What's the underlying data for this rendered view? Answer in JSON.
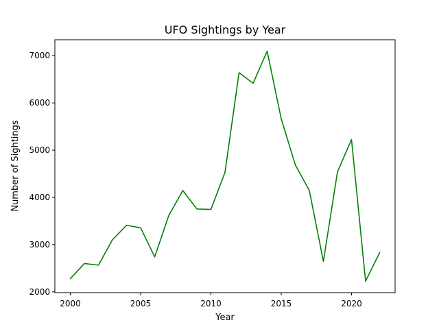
{
  "chart_data": {
    "type": "line",
    "title": "UFO Sightings by Year",
    "xlabel": "Year",
    "ylabel": "Number of Sightings",
    "x": [
      2000,
      2001,
      2002,
      2003,
      2004,
      2005,
      2006,
      2007,
      2008,
      2009,
      2010,
      2011,
      2012,
      2013,
      2014,
      2015,
      2016,
      2017,
      2018,
      2019,
      2020,
      2021,
      2022
    ],
    "series": [
      {
        "values": [
          2280,
          2600,
          2565,
          3105,
          3410,
          3355,
          2740,
          3615,
          4145,
          3755,
          3745,
          4530,
          6640,
          6415,
          7095,
          5665,
          4690,
          4145,
          2645,
          4540,
          5225,
          2225,
          2830
        ],
        "color": "#008000"
      }
    ],
    "xlim": [
      1998.9,
      2023.1
    ],
    "ylim": [
      1983,
      7337
    ],
    "xticks": [
      2000,
      2005,
      2010,
      2015,
      2020
    ],
    "yticks": [
      2000,
      3000,
      4000,
      5000,
      6000,
      7000
    ],
    "grid": false,
    "legend": "none"
  }
}
